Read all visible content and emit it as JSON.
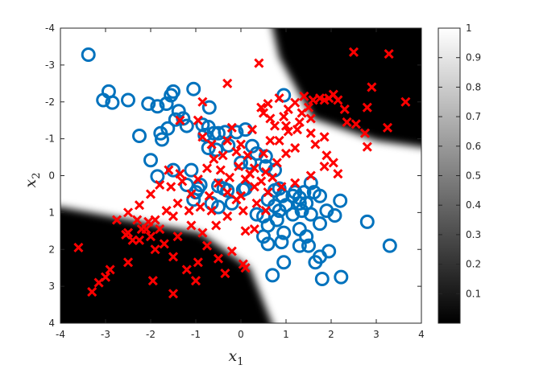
{
  "chart_data": {
    "type": "scatter",
    "xlabel": "x",
    "xlabel_sub": "1",
    "ylabel": "x",
    "ylabel_sub": "2",
    "xlim": [
      -4,
      4
    ],
    "ylim": [
      -4,
      4
    ],
    "y_axis_reversed": true,
    "x_ticks": [
      "-4",
      "-3",
      "-2",
      "-1",
      "0",
      "1",
      "2",
      "3",
      "4"
    ],
    "y_ticks": [
      "-4",
      "-3",
      "-2",
      "-1",
      "0",
      "1",
      "2",
      "3",
      "4"
    ],
    "colorbar": {
      "min": 0,
      "max": 1,
      "colormap": "gray",
      "ticks": [
        "0.1",
        "0.2",
        "0.3",
        "0.4",
        "0.5",
        "0.6",
        "0.7",
        "0.8",
        "0.9",
        "1"
      ]
    },
    "background": "Predicted probability surface: bright near the diagonal x2 ≈ -0.52·x1 and dark in the regions x2 > 0.37·x1 + 1.3 and x2 < -0.37·x1 - 1.5 (axes as plotted)",
    "series": [
      {
        "marker": "circle",
        "color": "#0072BD",
        "points": [
          [
            -3.38,
            -3.28
          ],
          [
            -2.93,
            -2.28
          ],
          [
            -3.05,
            -2.05
          ],
          [
            -2.85,
            -1.98
          ],
          [
            -2.5,
            -2.05
          ],
          [
            -2.05,
            -1.95
          ],
          [
            -1.85,
            -1.88
          ],
          [
            -1.5,
            -2.28
          ],
          [
            -1.55,
            -2.18
          ],
          [
            -1.65,
            -1.95
          ],
          [
            -1.38,
            -1.75
          ],
          [
            -1.28,
            -1.55
          ],
          [
            -1.45,
            -1.52
          ],
          [
            -1.2,
            -1.35
          ],
          [
            -1.62,
            -1.28
          ],
          [
            -1.78,
            -1.15
          ],
          [
            -1.75,
            -0.98
          ],
          [
            -2.25,
            -1.08
          ],
          [
            -1.05,
            -2.35
          ],
          [
            -0.7,
            -1.85
          ],
          [
            -0.72,
            -1.32
          ],
          [
            -0.6,
            -1.15
          ],
          [
            -0.5,
            -1.15
          ],
          [
            -0.35,
            -1.18
          ],
          [
            -0.1,
            -1.18
          ],
          [
            0.1,
            -1.25
          ],
          [
            0.95,
            -2.18
          ],
          [
            -2.0,
            -0.42
          ],
          [
            -1.85,
            0.02
          ],
          [
            -1.5,
            -0.15
          ],
          [
            -1.2,
            0.25
          ],
          [
            -1.1,
            -0.15
          ],
          [
            -0.5,
            0.28
          ],
          [
            -0.95,
            0.35
          ],
          [
            -1.05,
            0.65
          ],
          [
            -0.5,
            0.85
          ],
          [
            -0.3,
            0.4
          ],
          [
            0.05,
            0.38
          ],
          [
            0.1,
            0.35
          ],
          [
            0.55,
            -0.52
          ],
          [
            0.35,
            -0.6
          ],
          [
            0.2,
            -0.35
          ],
          [
            0.0,
            -0.35
          ],
          [
            -0.38,
            0.35
          ],
          [
            0.85,
            0.35
          ],
          [
            0.92,
            0.55
          ],
          [
            0.6,
            0.65
          ],
          [
            0.75,
            0.82
          ],
          [
            0.5,
            1.1
          ],
          [
            0.8,
            1.2
          ],
          [
            0.6,
            1.35
          ],
          [
            1.2,
            0.45
          ],
          [
            1.3,
            0.6
          ],
          [
            1.45,
            0.75
          ],
          [
            1.4,
            0.45
          ],
          [
            1.62,
            0.45
          ],
          [
            1.55,
            0.2
          ],
          [
            1.0,
            0.8
          ],
          [
            1.35,
            0.95
          ],
          [
            1.55,
            1.05
          ],
          [
            1.9,
            0.95
          ],
          [
            2.2,
            0.68
          ],
          [
            2.08,
            1.08
          ],
          [
            1.75,
            1.3
          ],
          [
            0.95,
            1.55
          ],
          [
            0.5,
            1.65
          ],
          [
            0.6,
            1.85
          ],
          [
            0.9,
            1.8
          ],
          [
            1.45,
            1.65
          ],
          [
            1.3,
            1.9
          ],
          [
            1.5,
            1.9
          ],
          [
            0.95,
            2.35
          ],
          [
            1.75,
            2.2
          ],
          [
            1.65,
            2.35
          ],
          [
            1.95,
            2.05
          ],
          [
            1.8,
            2.8
          ],
          [
            0.7,
            2.7
          ],
          [
            2.22,
            2.75
          ],
          [
            2.8,
            1.25
          ],
          [
            3.3,
            1.9
          ],
          [
            1.3,
            0.75
          ],
          [
            1.15,
            1.05
          ],
          [
            -0.72,
            -0.75
          ],
          [
            -0.55,
            -0.7
          ],
          [
            -0.8,
            -1.1
          ],
          [
            -0.85,
            -1.38
          ],
          [
            -0.28,
            -0.82
          ],
          [
            0.55,
            -0.25
          ],
          [
            0.75,
            -0.15
          ],
          [
            0.25,
            -0.8
          ],
          [
            -1.0,
            0.45
          ],
          [
            -0.65,
            0.75
          ],
          [
            -0.9,
            0.25
          ],
          [
            -0.2,
            0.75
          ],
          [
            0.35,
            1.05
          ],
          [
            0.75,
            0.4
          ],
          [
            1.15,
            0.55
          ],
          [
            1.75,
            0.55
          ],
          [
            1.3,
            1.45
          ],
          [
            0.85,
            0.95
          ]
        ]
      },
      {
        "marker": "x",
        "color": "#FF0000",
        "points": [
          [
            2.5,
            -3.35
          ],
          [
            3.28,
            -3.3
          ],
          [
            0.4,
            -3.05
          ],
          [
            -0.3,
            -2.5
          ],
          [
            2.9,
            -2.4
          ],
          [
            3.65,
            -2.0
          ],
          [
            2.8,
            -1.85
          ],
          [
            3.25,
            -1.3
          ],
          [
            2.75,
            -1.15
          ],
          [
            2.8,
            -0.78
          ],
          [
            2.35,
            -1.45
          ],
          [
            2.3,
            -1.8
          ],
          [
            2.15,
            -2.05
          ],
          [
            1.75,
            -2.1
          ],
          [
            1.85,
            -2.05
          ],
          [
            1.95,
            -2.1
          ],
          [
            2.05,
            -2.2
          ],
          [
            1.6,
            -2.05
          ],
          [
            1.4,
            -2.15
          ],
          [
            1.2,
            -1.98
          ],
          [
            1.35,
            -1.7
          ],
          [
            1.55,
            -1.55
          ],
          [
            1.05,
            -1.8
          ],
          [
            0.95,
            -1.6
          ],
          [
            0.65,
            -1.55
          ],
          [
            0.5,
            -1.7
          ],
          [
            0.45,
            -1.85
          ],
          [
            0.75,
            -1.35
          ],
          [
            1.25,
            -1.25
          ],
          [
            1.55,
            -1.15
          ],
          [
            1.85,
            -1.05
          ],
          [
            1.65,
            -0.85
          ],
          [
            1.2,
            -0.75
          ],
          [
            1.0,
            -0.6
          ],
          [
            0.8,
            -0.35
          ],
          [
            0.55,
            -0.1
          ],
          [
            0.3,
            -0.2
          ],
          [
            0.15,
            -0.55
          ],
          [
            0.0,
            -0.85
          ],
          [
            -0.1,
            -0.65
          ],
          [
            -0.3,
            -0.95
          ],
          [
            -0.4,
            -0.55
          ],
          [
            -0.6,
            -0.45
          ],
          [
            -0.75,
            -0.2
          ],
          [
            -0.85,
            -1.05
          ],
          [
            -0.95,
            -1.5
          ],
          [
            -0.85,
            -2.0
          ],
          [
            -1.35,
            -1.5
          ],
          [
            -1.6,
            -0.15
          ],
          [
            -1.8,
            0.25
          ],
          [
            -1.55,
            0.3
          ],
          [
            -1.3,
            0.15
          ],
          [
            -1.1,
            0.5
          ],
          [
            -0.9,
            0.85
          ],
          [
            -0.7,
            0.55
          ],
          [
            -0.5,
            0.2
          ],
          [
            -0.3,
            0.45
          ],
          [
            -0.1,
            0.65
          ],
          [
            0.1,
            0.1
          ],
          [
            0.3,
            0.3
          ],
          [
            -2.0,
            0.5
          ],
          [
            -2.25,
            0.8
          ],
          [
            -2.5,
            1.0
          ],
          [
            -2.75,
            1.2
          ],
          [
            -2.05,
            1.25
          ],
          [
            -1.65,
            0.95
          ],
          [
            -1.4,
            0.75
          ],
          [
            -1.15,
            0.95
          ],
          [
            -1.8,
            1.45
          ],
          [
            -2.1,
            1.45
          ],
          [
            -2.25,
            1.75
          ],
          [
            -2.5,
            1.55
          ],
          [
            -2.0,
            1.65
          ],
          [
            -1.7,
            1.85
          ],
          [
            -1.4,
            1.65
          ],
          [
            -1.1,
            1.35
          ],
          [
            -0.85,
            1.55
          ],
          [
            -0.55,
            1.35
          ],
          [
            -1.9,
            2.0
          ],
          [
            -1.5,
            2.2
          ],
          [
            -1.2,
            2.55
          ],
          [
            -0.95,
            2.35
          ],
          [
            -0.5,
            2.25
          ],
          [
            -0.2,
            2.05
          ],
          [
            -0.35,
            2.65
          ],
          [
            0.05,
            2.4
          ],
          [
            0.1,
            2.5
          ],
          [
            -1.0,
            2.85
          ],
          [
            -1.5,
            3.2
          ],
          [
            -1.95,
            2.85
          ],
          [
            -2.5,
            2.35
          ],
          [
            -2.9,
            2.55
          ],
          [
            -3.0,
            2.75
          ],
          [
            -3.15,
            2.9
          ],
          [
            -3.3,
            3.15
          ],
          [
            -3.6,
            1.95
          ],
          [
            -2.55,
            1.6
          ],
          [
            -2.3,
            1.2
          ],
          [
            -0.3,
            1.1
          ],
          [
            0.1,
            1.5
          ],
          [
            0.3,
            1.45
          ],
          [
            0.55,
            0.95
          ],
          [
            0.35,
            0.75
          ],
          [
            0.05,
            0.95
          ],
          [
            0.6,
            0.45
          ],
          [
            0.9,
            0.3
          ],
          [
            1.2,
            0.2
          ],
          [
            1.55,
            0.0
          ],
          [
            1.85,
            -0.25
          ],
          [
            2.05,
            -0.35
          ],
          [
            2.15,
            -0.05
          ],
          [
            1.9,
            -0.55
          ],
          [
            2.55,
            -1.4
          ],
          [
            0.5,
            -0.6
          ],
          [
            -0.05,
            -0.25
          ],
          [
            -0.25,
            0.05
          ],
          [
            -0.45,
            -0.15
          ],
          [
            0.85,
            -0.95
          ],
          [
            1.05,
            -1.2
          ],
          [
            1.5,
            -1.85
          ],
          [
            -1.35,
            -0.05
          ],
          [
            -0.65,
            -0.85
          ],
          [
            -0.2,
            -1.3
          ],
          [
            0.25,
            -1.25
          ],
          [
            0.65,
            -0.95
          ],
          [
            1.3,
            -1.45
          ],
          [
            1.0,
            -1.35
          ],
          [
            0.85,
            -2.1
          ],
          [
            0.6,
            -1.95
          ],
          [
            -0.65,
            0.95
          ],
          [
            0.0,
            0.55
          ],
          [
            0.45,
            0.15
          ],
          [
            0.7,
            0.05
          ],
          [
            -1.5,
            1.1
          ],
          [
            -1.9,
            1.2
          ],
          [
            -0.75,
            1.9
          ],
          [
            -2.4,
            1.75
          ],
          [
            -2.2,
            1.45
          ],
          [
            -0.95,
            0.1
          ],
          [
            0.2,
            -0.05
          ]
        ]
      }
    ]
  }
}
